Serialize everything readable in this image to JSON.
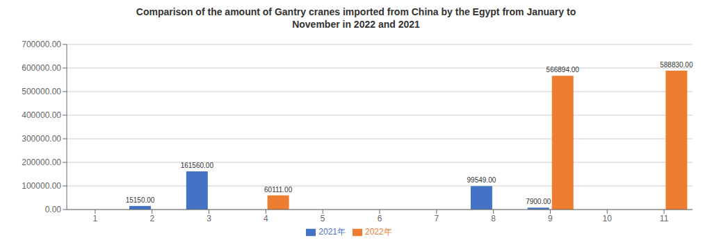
{
  "chart_data": {
    "type": "bar",
    "title": "Comparison of the amount of Gantry cranes imported from China by the Egypt from January to\nNovember in 2022 and 2021",
    "categories": [
      "1",
      "2",
      "3",
      "4",
      "5",
      "6",
      "7",
      "8",
      "9",
      "10",
      "11"
    ],
    "series": [
      {
        "name": "2021年",
        "color": "#4472C4",
        "values": [
          0,
          15150.0,
          161560.0,
          0,
          0,
          0,
          0,
          99549.0,
          7900.0,
          0,
          0
        ],
        "value_labels": [
          null,
          "15150.00",
          "161560.00",
          null,
          null,
          null,
          null,
          "99549.00",
          "7900.00",
          null,
          null
        ]
      },
      {
        "name": "2022年",
        "color": "#ED7D31",
        "values": [
          0,
          0,
          0,
          60111.0,
          0,
          0,
          0,
          0,
          566894.0,
          0,
          588830.0
        ],
        "value_labels": [
          null,
          null,
          null,
          "60111.00",
          null,
          null,
          null,
          null,
          "566894.00",
          null,
          "588830.00"
        ]
      }
    ],
    "ylim": [
      0,
      700000
    ],
    "yticks": [
      {
        "value": 0,
        "label": "0.00"
      },
      {
        "value": 100000,
        "label": "100000.00"
      },
      {
        "value": 200000,
        "label": "200000.00"
      },
      {
        "value": 300000,
        "label": "300000.00"
      },
      {
        "value": 400000,
        "label": "400000.00"
      },
      {
        "value": 500000,
        "label": "500000.00"
      },
      {
        "value": 600000,
        "label": "600000.00"
      },
      {
        "value": 700000,
        "label": "700000.00"
      }
    ],
    "grid": true,
    "legend": "bottom",
    "data_labels": true
  }
}
